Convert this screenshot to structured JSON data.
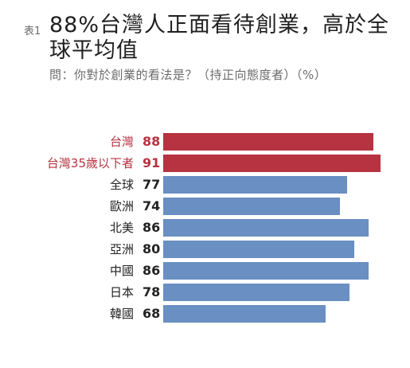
{
  "header": {
    "tag": "表1",
    "title": "88%台灣人正面看待創業，高於全球平均值",
    "subtitle": "問：你對於創業的看法是？（持正向態度者）（%）"
  },
  "colors": {
    "highlight": "#b73341",
    "normal": "#6a8fc2",
    "text_dark": "#222222",
    "text_highlight": "#b73341"
  },
  "chart_data": {
    "type": "bar",
    "orientation": "horizontal",
    "categories": [
      "台灣",
      "台灣35歲以下者",
      "全球",
      "歐洲",
      "北美",
      "亞洲",
      "中國",
      "日本",
      "韓國"
    ],
    "values": [
      88,
      91,
      77,
      74,
      86,
      80,
      86,
      78,
      68
    ],
    "highlighted": [
      true,
      true,
      false,
      false,
      false,
      false,
      false,
      false,
      false
    ],
    "title": "88%台灣人正面看待創業，高於全球平均值",
    "subtitle": "問：你對於創業的看法是？（持正向態度者）（%）",
    "xlim": [
      0,
      100
    ],
    "grid": false,
    "legend": "none"
  }
}
